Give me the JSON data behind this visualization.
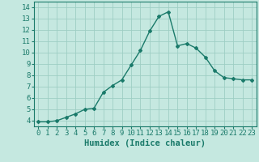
{
  "x": [
    0,
    1,
    2,
    3,
    4,
    5,
    6,
    7,
    8,
    9,
    10,
    11,
    12,
    13,
    14,
    15,
    16,
    17,
    18,
    19,
    20,
    21,
    22,
    23
  ],
  "y": [
    3.9,
    3.9,
    4.0,
    4.3,
    4.6,
    5.0,
    5.1,
    6.5,
    7.1,
    7.6,
    8.9,
    10.2,
    11.9,
    13.2,
    13.6,
    10.6,
    10.8,
    10.4,
    9.6,
    8.4,
    7.8,
    7.7,
    7.6,
    7.6
  ],
  "line_color": "#1a7a6a",
  "marker": "D",
  "marker_size": 2.0,
  "bg_color": "#c5e8e0",
  "grid_color": "#9ecec4",
  "xlabel": "Humidex (Indice chaleur)",
  "xlim": [
    -0.5,
    23.5
  ],
  "ylim": [
    3.5,
    14.5
  ],
  "yticks": [
    4,
    5,
    6,
    7,
    8,
    9,
    10,
    11,
    12,
    13,
    14
  ],
  "xticks": [
    0,
    1,
    2,
    3,
    4,
    5,
    6,
    7,
    8,
    9,
    10,
    11,
    12,
    13,
    14,
    15,
    16,
    17,
    18,
    19,
    20,
    21,
    22,
    23
  ],
  "tick_fontsize": 6.5,
  "label_fontsize": 7.5,
  "line_width": 1.0
}
